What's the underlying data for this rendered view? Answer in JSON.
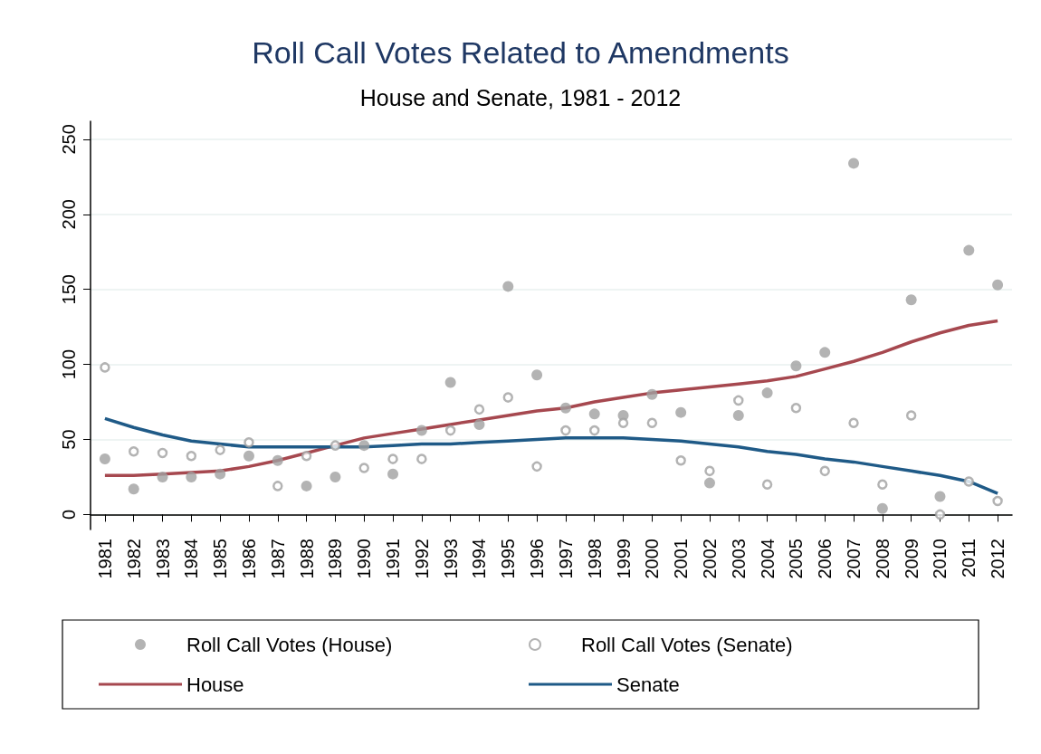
{
  "chart_data": {
    "type": "scatter",
    "title": "Roll Call Votes Related to Amendments",
    "subtitle": "House and Senate, 1981 - 2012",
    "categories": [
      "1981",
      "1982",
      "1983",
      "1984",
      "1985",
      "1986",
      "1987",
      "1988",
      "1989",
      "1990",
      "1991",
      "1992",
      "1993",
      "1994",
      "1995",
      "1996",
      "1997",
      "1998",
      "1999",
      "2000",
      "2001",
      "2002",
      "2003",
      "2004",
      "2005",
      "2006",
      "2007",
      "2008",
      "2009",
      "2010",
      "2011",
      "2012"
    ],
    "series": [
      {
        "name": "Roll Call Votes (House)",
        "marker": "circle",
        "color": "#a0a0a0",
        "values": [
          37,
          17,
          25,
          25,
          27,
          39,
          36,
          19,
          25,
          46,
          27,
          56,
          88,
          60,
          152,
          93,
          71,
          67,
          66,
          80,
          68,
          21,
          66,
          81,
          99,
          108,
          234,
          4,
          143,
          12,
          176,
          153
        ]
      },
      {
        "name": "Roll Call Votes (Senate)",
        "marker": "circle",
        "color": "#a0a0a0",
        "values": [
          98,
          42,
          41,
          39,
          43,
          48,
          19,
          39,
          46,
          31,
          37,
          37,
          56,
          70,
          78,
          32,
          56,
          56,
          61,
          61,
          36,
          29,
          76,
          20,
          71,
          29,
          61,
          20,
          66,
          0,
          22,
          9
        ]
      },
      {
        "name": "House",
        "type": "line",
        "marker": "none",
        "color": "#a6484f",
        "values": [
          26,
          26,
          27,
          28,
          29,
          32,
          36,
          41,
          46,
          51,
          54,
          57,
          60,
          63,
          66,
          69,
          71,
          75,
          78,
          81,
          83,
          85,
          87,
          89,
          92,
          97,
          102,
          108,
          115,
          121,
          126,
          129
        ]
      },
      {
        "name": "Senate",
        "type": "line",
        "marker": "none",
        "color": "#1f5a87",
        "values": [
          64,
          58,
          53,
          49,
          47,
          45,
          45,
          45,
          45,
          45,
          46,
          47,
          47,
          48,
          49,
          50,
          51,
          51,
          51,
          50,
          49,
          47,
          45,
          42,
          40,
          37,
          35,
          32,
          29,
          26,
          22,
          14
        ]
      }
    ],
    "ylim": [
      -10,
      262
    ],
    "yticks": [
      0,
      50,
      100,
      150,
      200,
      250
    ],
    "grid": "y",
    "legend": "bottom"
  }
}
